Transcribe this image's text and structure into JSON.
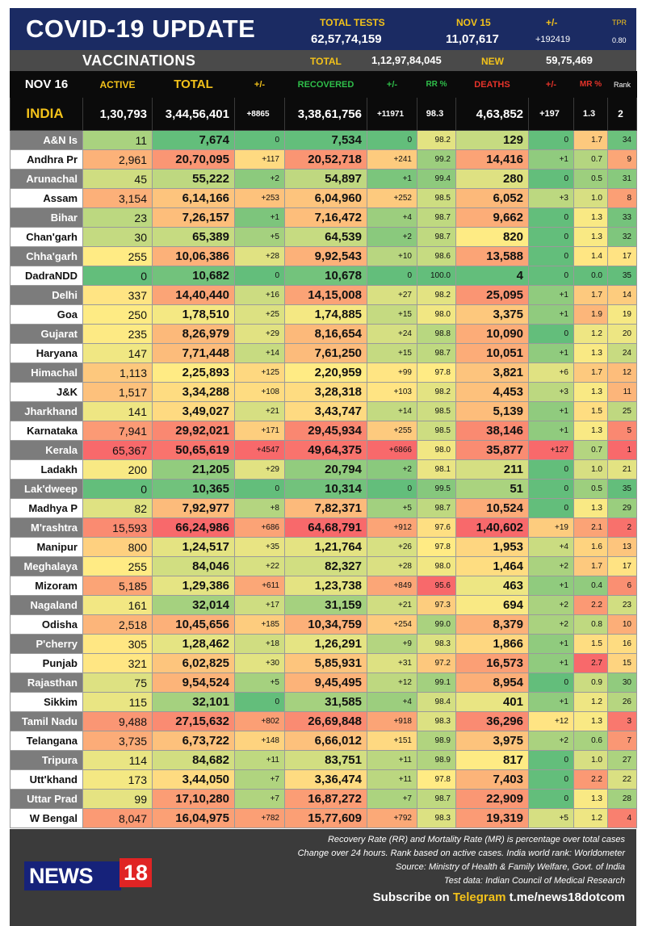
{
  "header": {
    "title": "COVID-19 UPDATE",
    "total_tests_label": "TOTAL TESTS",
    "total_tests_value": "62,57,74,159",
    "date_label": "NOV 15",
    "date_value": "11,07,617",
    "change_label": "+/-",
    "change_value": "+192419",
    "tpr_label": "TPR",
    "tpr_value": "0.80"
  },
  "vaccinations": {
    "label": "VACCINATIONS",
    "total_label": "TOTAL",
    "total_value": "1,12,97,84,045",
    "new_label": "NEW",
    "new_value": "59,75,469"
  },
  "columns": [
    "NOV 16",
    "ACTIVE",
    "TOTAL",
    "+/-",
    "RECOVERED",
    "+/-",
    "RR %",
    "DEATHS",
    "+/-",
    "MR %",
    "Rank"
  ],
  "india": {
    "name": "INDIA",
    "active": "1,30,793",
    "total": "3,44,56,401",
    "total_change": "+8865",
    "recovered": "3,38,61,756",
    "recovered_change": "+11971",
    "rr": "98.3",
    "deaths": "4,63,852",
    "deaths_change": "+197",
    "mr": "1.3",
    "rank": "2"
  },
  "states": [
    {
      "name": "A&N Is",
      "active": "11",
      "total": "7,674",
      "tc": "0",
      "recovered": "7,534",
      "rc": "0",
      "rr": "98.2",
      "deaths": "129",
      "dc": "0",
      "mr": "1.7",
      "rank": "34"
    },
    {
      "name": "Andhra Pr",
      "active": "2,961",
      "total": "20,70,095",
      "tc": "+117",
      "recovered": "20,52,718",
      "rc": "+241",
      "rr": "99.2",
      "deaths": "14,416",
      "dc": "+1",
      "mr": "0.7",
      "rank": "9"
    },
    {
      "name": "Arunachal",
      "active": "45",
      "total": "55,222",
      "tc": "+2",
      "recovered": "54,897",
      "rc": "+1",
      "rr": "99.4",
      "deaths": "280",
      "dc": "0",
      "mr": "0.5",
      "rank": "31"
    },
    {
      "name": "Assam",
      "active": "3,154",
      "total": "6,14,166",
      "tc": "+253",
      "recovered": "6,04,960",
      "rc": "+252",
      "rr": "98.5",
      "deaths": "6,052",
      "dc": "+3",
      "mr": "1.0",
      "rank": "8"
    },
    {
      "name": "Bihar",
      "active": "23",
      "total": "7,26,157",
      "tc": "+1",
      "recovered": "7,16,472",
      "rc": "+4",
      "rr": "98.7",
      "deaths": "9,662",
      "dc": "0",
      "mr": "1.3",
      "rank": "33"
    },
    {
      "name": "Chan'garh",
      "active": "30",
      "total": "65,389",
      "tc": "+5",
      "recovered": "64,539",
      "rc": "+2",
      "rr": "98.7",
      "deaths": "820",
      "dc": "0",
      "mr": "1.3",
      "rank": "32"
    },
    {
      "name": "Chha'garh",
      "active": "255",
      "total": "10,06,386",
      "tc": "+28",
      "recovered": "9,92,543",
      "rc": "+10",
      "rr": "98.6",
      "deaths": "13,588",
      "dc": "0",
      "mr": "1.4",
      "rank": "17"
    },
    {
      "name": "DadraNDD",
      "active": "0",
      "total": "10,682",
      "tc": "0",
      "recovered": "10,678",
      "rc": "0",
      "rr": "100.0",
      "deaths": "4",
      "dc": "0",
      "mr": "0.0",
      "rank": "35"
    },
    {
      "name": "Delhi",
      "active": "337",
      "total": "14,40,440",
      "tc": "+16",
      "recovered": "14,15,008",
      "rc": "+27",
      "rr": "98.2",
      "deaths": "25,095",
      "dc": "+1",
      "mr": "1.7",
      "rank": "14"
    },
    {
      "name": "Goa",
      "active": "250",
      "total": "1,78,510",
      "tc": "+25",
      "recovered": "1,74,885",
      "rc": "+15",
      "rr": "98.0",
      "deaths": "3,375",
      "dc": "+1",
      "mr": "1.9",
      "rank": "19"
    },
    {
      "name": "Gujarat",
      "active": "235",
      "total": "8,26,979",
      "tc": "+29",
      "recovered": "8,16,654",
      "rc": "+24",
      "rr": "98.8",
      "deaths": "10,090",
      "dc": "0",
      "mr": "1.2",
      "rank": "20"
    },
    {
      "name": "Haryana",
      "active": "147",
      "total": "7,71,448",
      "tc": "+14",
      "recovered": "7,61,250",
      "rc": "+15",
      "rr": "98.7",
      "deaths": "10,051",
      "dc": "+1",
      "mr": "1.3",
      "rank": "24"
    },
    {
      "name": "Himachal",
      "active": "1,113",
      "total": "2,25,893",
      "tc": "+125",
      "recovered": "2,20,959",
      "rc": "+99",
      "rr": "97.8",
      "deaths": "3,821",
      "dc": "+6",
      "mr": "1.7",
      "rank": "12"
    },
    {
      "name": "J&K",
      "active": "1,517",
      "total": "3,34,288",
      "tc": "+108",
      "recovered": "3,28,318",
      "rc": "+103",
      "rr": "98.2",
      "deaths": "4,453",
      "dc": "+3",
      "mr": "1.3",
      "rank": "11"
    },
    {
      "name": "Jharkhand",
      "active": "141",
      "total": "3,49,027",
      "tc": "+21",
      "recovered": "3,43,747",
      "rc": "+14",
      "rr": "98.5",
      "deaths": "5,139",
      "dc": "+1",
      "mr": "1.5",
      "rank": "25"
    },
    {
      "name": "Karnataka",
      "active": "7,941",
      "total": "29,92,021",
      "tc": "+171",
      "recovered": "29,45,934",
      "rc": "+255",
      "rr": "98.5",
      "deaths": "38,146",
      "dc": "+1",
      "mr": "1.3",
      "rank": "5"
    },
    {
      "name": "Kerala",
      "active": "65,367",
      "total": "50,65,619",
      "tc": "+4547",
      "recovered": "49,64,375",
      "rc": "+6866",
      "rr": "98.0",
      "deaths": "35,877",
      "dc": "+127",
      "mr": "0.7",
      "rank": "1"
    },
    {
      "name": "Ladakh",
      "active": "200",
      "total": "21,205",
      "tc": "+29",
      "recovered": "20,794",
      "rc": "+2",
      "rr": "98.1",
      "deaths": "211",
      "dc": "0",
      "mr": "1.0",
      "rank": "21"
    },
    {
      "name": "Lak'dweep",
      "active": "0",
      "total": "10,365",
      "tc": "0",
      "recovered": "10,314",
      "rc": "0",
      "rr": "99.5",
      "deaths": "51",
      "dc": "0",
      "mr": "0.5",
      "rank": "35"
    },
    {
      "name": "Madhya P",
      "active": "82",
      "total": "7,92,977",
      "tc": "+8",
      "recovered": "7,82,371",
      "rc": "+5",
      "rr": "98.7",
      "deaths": "10,524",
      "dc": "0",
      "mr": "1.3",
      "rank": "29"
    },
    {
      "name": "M'rashtra",
      "active": "15,593",
      "total": "66,24,986",
      "tc": "+686",
      "recovered": "64,68,791",
      "rc": "+912",
      "rr": "97.6",
      "deaths": "1,40,602",
      "dc": "+19",
      "mr": "2.1",
      "rank": "2"
    },
    {
      "name": "Manipur",
      "active": "800",
      "total": "1,24,517",
      "tc": "+35",
      "recovered": "1,21,764",
      "rc": "+26",
      "rr": "97.8",
      "deaths": "1,953",
      "dc": "+4",
      "mr": "1.6",
      "rank": "13"
    },
    {
      "name": "Meghalaya",
      "active": "255",
      "total": "84,046",
      "tc": "+22",
      "recovered": "82,327",
      "rc": "+28",
      "rr": "98.0",
      "deaths": "1,464",
      "dc": "+2",
      "mr": "1.7",
      "rank": "17"
    },
    {
      "name": "Mizoram",
      "active": "5,185",
      "total": "1,29,386",
      "tc": "+611",
      "recovered": "1,23,738",
      "rc": "+849",
      "rr": "95.6",
      "deaths": "463",
      "dc": "+1",
      "mr": "0.4",
      "rank": "6"
    },
    {
      "name": "Nagaland",
      "active": "161",
      "total": "32,014",
      "tc": "+17",
      "recovered": "31,159",
      "rc": "+21",
      "rr": "97.3",
      "deaths": "694",
      "dc": "+2",
      "mr": "2.2",
      "rank": "23"
    },
    {
      "name": "Odisha",
      "active": "2,518",
      "total": "10,45,656",
      "tc": "+185",
      "recovered": "10,34,759",
      "rc": "+254",
      "rr": "99.0",
      "deaths": "8,379",
      "dc": "+2",
      "mr": "0.8",
      "rank": "10"
    },
    {
      "name": "P'cherry",
      "active": "305",
      "total": "1,28,462",
      "tc": "+18",
      "recovered": "1,26,291",
      "rc": "+9",
      "rr": "98.3",
      "deaths": "1,866",
      "dc": "+1",
      "mr": "1.5",
      "rank": "16"
    },
    {
      "name": "Punjab",
      "active": "321",
      "total": "6,02,825",
      "tc": "+30",
      "recovered": "5,85,931",
      "rc": "+31",
      "rr": "97.2",
      "deaths": "16,573",
      "dc": "+1",
      "mr": "2.7",
      "rank": "15"
    },
    {
      "name": "Rajasthan",
      "active": "75",
      "total": "9,54,524",
      "tc": "+5",
      "recovered": "9,45,495",
      "rc": "+12",
      "rr": "99.1",
      "deaths": "8,954",
      "dc": "0",
      "mr": "0.9",
      "rank": "30"
    },
    {
      "name": "Sikkim",
      "active": "115",
      "total": "32,101",
      "tc": "0",
      "recovered": "31,585",
      "rc": "+4",
      "rr": "98.4",
      "deaths": "401",
      "dc": "+1",
      "mr": "1.2",
      "rank": "26"
    },
    {
      "name": "Tamil Nadu",
      "active": "9,488",
      "total": "27,15,632",
      "tc": "+802",
      "recovered": "26,69,848",
      "rc": "+918",
      "rr": "98.3",
      "deaths": "36,296",
      "dc": "+12",
      "mr": "1.3",
      "rank": "3"
    },
    {
      "name": "Telangana",
      "active": "3,735",
      "total": "6,73,722",
      "tc": "+148",
      "recovered": "6,66,012",
      "rc": "+151",
      "rr": "98.9",
      "deaths": "3,975",
      "dc": "+2",
      "mr": "0.6",
      "rank": "7"
    },
    {
      "name": "Tripura",
      "active": "114",
      "total": "84,682",
      "tc": "+11",
      "recovered": "83,751",
      "rc": "+11",
      "rr": "98.9",
      "deaths": "817",
      "dc": "0",
      "mr": "1.0",
      "rank": "27"
    },
    {
      "name": "Utt'khand",
      "active": "173",
      "total": "3,44,050",
      "tc": "+7",
      "recovered": "3,36,474",
      "rc": "+11",
      "rr": "97.8",
      "deaths": "7,403",
      "dc": "0",
      "mr": "2.2",
      "rank": "22"
    },
    {
      "name": "Uttar Prad",
      "active": "99",
      "total": "17,10,280",
      "tc": "+7",
      "recovered": "16,87,272",
      "rc": "+7",
      "rr": "98.7",
      "deaths": "22,909",
      "dc": "0",
      "mr": "1.3",
      "rank": "28"
    },
    {
      "name": "W Bengal",
      "active": "8,047",
      "total": "16,04,975",
      "tc": "+782",
      "recovered": "15,77,609",
      "rc": "+792",
      "rr": "98.3",
      "deaths": "19,319",
      "dc": "+5",
      "mr": "1.2",
      "rank": "4"
    }
  ],
  "footer": {
    "notes": [
      "Recovery Rate (RR) and Mortality Rate (MR) is percentage over total cases",
      "Change over 24 hours. Rank based on active cases. India world rank: Worldometer",
      "Source: Ministry of Health & Family Welfare, Govt. of India",
      "Test data: Indian Council of Medical Research"
    ],
    "subscribe_prefix": "Subscribe on ",
    "subscribe_platform": "Telegram",
    "subscribe_handle": " t.me/news18dotcom",
    "logo_news": "NEWS",
    "logo_18": "18"
  },
  "colors": {
    "title_band": "#1b2b63",
    "label_gold": "#f3c21a",
    "active_header": "#f3c21a",
    "total_header": "#f3c21a",
    "recovered_header": "#2fbf4a",
    "deaths_header": "#e5332a",
    "mr_header": "#e5332a",
    "rank_header": "#ffffff"
  }
}
